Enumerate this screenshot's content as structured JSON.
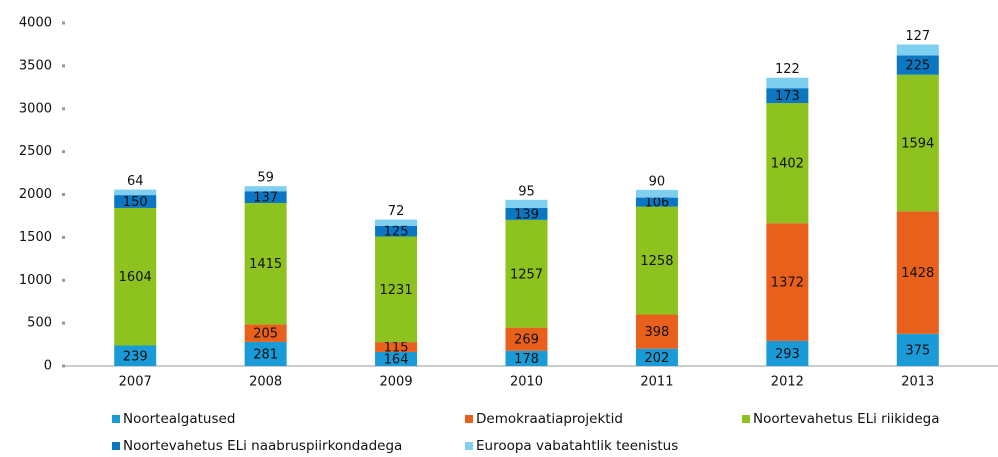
{
  "chart_data": {
    "type": "stacked_bar",
    "categories": [
      "2007",
      "2008",
      "2009",
      "2010",
      "2011",
      "2012",
      "2013"
    ],
    "series": [
      {
        "name": "Noortealgatused",
        "color": "#1a9ad6",
        "values": [
          239,
          281,
          164,
          178,
          202,
          293,
          375
        ]
      },
      {
        "name": "Demokraatiaprojektid",
        "color": "#e8601c",
        "values": [
          0,
          205,
          115,
          269,
          398,
          1372,
          1428
        ]
      },
      {
        "name": "Noortevahetus ELi riikidega",
        "color": "#8dc21f",
        "values": [
          1604,
          1415,
          1231,
          1257,
          1258,
          1402,
          1594
        ]
      },
      {
        "name": "Noortevahetus ELi naabruspiirkondadega",
        "color": "#0b77c2",
        "values": [
          150,
          137,
          125,
          139,
          106,
          173,
          225
        ]
      },
      {
        "name": "Euroopa vabatahtlik teenistus",
        "color": "#7fd0f0",
        "values": [
          64,
          59,
          72,
          95,
          90,
          122,
          127
        ]
      }
    ],
    "ylim": [
      0,
      4000
    ],
    "yticks": [
      0,
      500,
      1000,
      1500,
      2000,
      2500,
      3000,
      3500,
      4000
    ],
    "grid": false,
    "legend": "bottom"
  }
}
